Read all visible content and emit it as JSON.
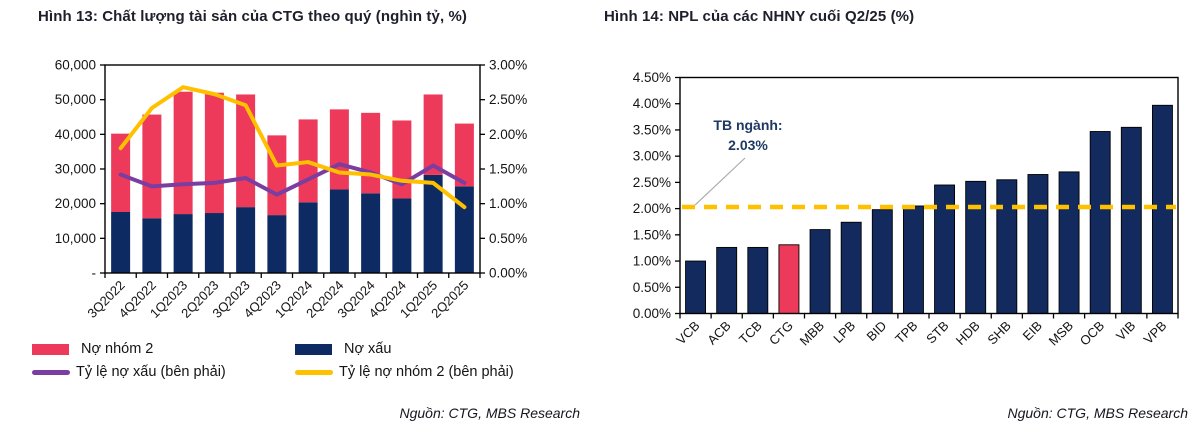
{
  "chart_data": [
    {
      "id": "ctg-asset-quality",
      "type": "combo_stacked_bar_line",
      "title": "Hình 13: Chất lượng tài sản của CTG theo quý (nghìn tỷ, %)",
      "categories": [
        "3Q2022",
        "4Q2022",
        "1Q2023",
        "2Q2023",
        "3Q2023",
        "4Q2023",
        "1Q2024",
        "2Q2024",
        "3Q2024",
        "4Q2024",
        "1Q2025",
        "2Q2025"
      ],
      "bar_series": [
        {
          "name": "Nợ xấu",
          "color": "#0E2A63",
          "axis": "left",
          "values": [
            17600,
            15800,
            17000,
            17300,
            19000,
            16700,
            20400,
            24100,
            23000,
            21500,
            28300,
            25000
          ]
        },
        {
          "name": "Nợ nhóm 2",
          "color": "#ED3A5B",
          "axis": "left",
          "values": [
            22600,
            29900,
            35300,
            34700,
            32500,
            23000,
            23900,
            23100,
            23200,
            22500,
            23200,
            18100
          ]
        }
      ],
      "line_series": [
        {
          "name": "Tỷ lệ nợ xấu (bên phải)",
          "color": "#7B3DA0",
          "axis": "right",
          "values": [
            1.42,
            1.25,
            1.28,
            1.3,
            1.37,
            1.13,
            1.35,
            1.57,
            1.45,
            1.28,
            1.55,
            1.3
          ]
        },
        {
          "name": "Tỷ lệ nợ nhóm 2 (bên phải)",
          "color": "#FFC000",
          "axis": "right",
          "values": [
            1.8,
            2.38,
            2.68,
            2.58,
            2.42,
            1.55,
            1.6,
            1.45,
            1.42,
            1.33,
            1.3,
            0.95
          ]
        }
      ],
      "left_axis": {
        "min": 0,
        "max": 60000,
        "step": 10000,
        "tick_labels_bottom_up": [
          "-",
          "10,000",
          "20,000",
          "30,000",
          "40,000",
          "50,000",
          "60,000"
        ]
      },
      "right_axis": {
        "min": 0,
        "max": 3,
        "step": 0.5,
        "tick_labels_bottom_up": [
          "0.00%",
          "0.50%",
          "1.00%",
          "1.50%",
          "2.00%",
          "2.50%",
          "3.00%"
        ]
      },
      "grid": "off",
      "legend": {
        "position": "bottom",
        "items": [
          {
            "label": "Nợ nhóm 2",
            "color": "#ED3A5B",
            "marker": "bar"
          },
          {
            "label": "Nợ xấu",
            "color": "#0E2A63",
            "marker": "bar"
          },
          {
            "label": "Tỷ lệ nợ xấu (bên phải)",
            "color": "#7B3DA0",
            "marker": "line"
          },
          {
            "label": "Tỷ lệ nợ nhóm 2 (bên phải)",
            "color": "#FFC000",
            "marker": "line"
          }
        ]
      },
      "source": "Nguồn: CTG, MBS Research"
    },
    {
      "id": "npl-banks-q225",
      "type": "bar",
      "title": "Hình 14:  NPL của các NHNY cuối Q2/25 (%)",
      "categories": [
        "VCB",
        "ACB",
        "TCB",
        "CTG",
        "MBB",
        "LPB",
        "BID",
        "TPB",
        "STB",
        "HDB",
        "SHB",
        "EIB",
        "MSB",
        "OCB",
        "VIB",
        "VPB"
      ],
      "values": [
        1.0,
        1.26,
        1.26,
        1.31,
        1.6,
        1.74,
        1.98,
        2.05,
        2.45,
        2.52,
        2.55,
        2.65,
        2.7,
        3.47,
        3.55,
        3.97
      ],
      "bar_color": "#132A5E",
      "bar_border_color": "#000000",
      "highlight_category": "CTG",
      "highlight_color": "#ED3A5B",
      "average_line": {
        "label": "TB ngành:",
        "value_label": "2.03%",
        "value": 2.03,
        "color": "#FFC000",
        "style": "dashed"
      },
      "y_axis": {
        "min": 0,
        "max": 4.5,
        "step": 0.5,
        "tick_labels_bottom_up": [
          "0.00%",
          "0.50%",
          "1.00%",
          "1.50%",
          "2.00%",
          "2.50%",
          "3.00%",
          "3.50%",
          "4.00%",
          "4.50%"
        ]
      },
      "grid": "off",
      "legend": {
        "position": "none"
      },
      "source": "Nguồn: CTG, MBS Research"
    }
  ]
}
